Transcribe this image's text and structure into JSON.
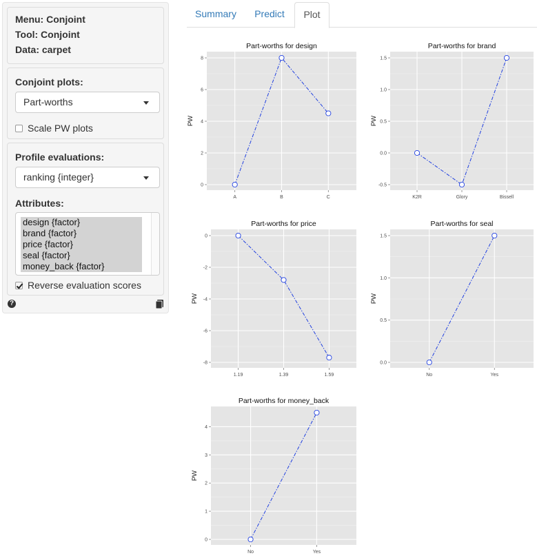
{
  "sidebar": {
    "menu": "Menu: Conjoint",
    "tool": "Tool: Conjoint",
    "data": "Data: carpet",
    "conjoint_plots_label": "Conjoint plots:",
    "conjoint_plots_value": "Part-worths",
    "scale_pw_label": "Scale PW plots",
    "scale_pw_checked": false,
    "profile_eval_label": "Profile evaluations:",
    "profile_eval_value": "ranking {integer}",
    "attributes_label": "Attributes:",
    "attributes": [
      "design {factor}",
      "brand {factor}",
      "price {factor}",
      "seal {factor}",
      "money_back {factor}"
    ],
    "reverse_label": "Reverse evaluation scores",
    "reverse_checked": true,
    "help_icon": "help-circle-icon",
    "report_icon": "book-icon"
  },
  "tabs": [
    {
      "label": "Summary",
      "active": false
    },
    {
      "label": "Predict",
      "active": false
    },
    {
      "label": "Plot",
      "active": true
    }
  ],
  "colors": {
    "line": "#1f3fe0",
    "panel": "#e5e5e5",
    "grid": "#ffffff",
    "tab_link": "#337ab7"
  },
  "chart_data": [
    {
      "type": "line",
      "title": "Part-worths for design",
      "ylabel": "PW",
      "categories": [
        "A",
        "B",
        "C"
      ],
      "values": [
        0,
        8,
        4.5
      ],
      "ylim": [
        0,
        8
      ],
      "yticks": [
        0,
        2,
        4,
        6,
        8
      ],
      "ytick_labels": [
        "0",
        "2",
        "4",
        "6",
        "8"
      ]
    },
    {
      "type": "line",
      "title": "Part-worths for brand",
      "ylabel": "PW",
      "categories": [
        "K2R",
        "Glory",
        "Bissell"
      ],
      "values": [
        0,
        -0.5,
        1.5
      ],
      "ylim": [
        -0.5,
        1.5
      ],
      "yticks": [
        -0.5,
        0,
        0.5,
        1,
        1.5
      ],
      "ytick_labels": [
        "-0.5",
        "0.0",
        "0.5",
        "1.0",
        "1.5"
      ]
    },
    {
      "type": "line",
      "title": "Part-worths for price",
      "ylabel": "PW",
      "categories": [
        "1.19",
        "1.39",
        "1.59"
      ],
      "values": [
        0,
        -2.8,
        -7.7
      ],
      "ylim": [
        -8,
        0
      ],
      "yticks": [
        -8,
        -6,
        -4,
        -2,
        0
      ],
      "ytick_labels": [
        "-8",
        "-6",
        "-4",
        "-2",
        "0"
      ]
    },
    {
      "type": "line",
      "title": "Part-worths for seal",
      "ylabel": "PW",
      "categories": [
        "No",
        "Yes"
      ],
      "values": [
        0,
        1.5
      ],
      "ylim": [
        0,
        1.5
      ],
      "yticks": [
        0,
        0.5,
        1,
        1.5
      ],
      "ytick_labels": [
        "0.0",
        "0.5",
        "1.0",
        "1.5"
      ]
    },
    {
      "type": "line",
      "title": "Part-worths for money_back",
      "ylabel": "PW",
      "categories": [
        "No",
        "Yes"
      ],
      "values": [
        0,
        4.5
      ],
      "ylim": [
        0,
        4.5
      ],
      "yticks": [
        0,
        1,
        2,
        3,
        4
      ],
      "ytick_labels": [
        "0",
        "1",
        "2",
        "3",
        "4"
      ]
    }
  ]
}
